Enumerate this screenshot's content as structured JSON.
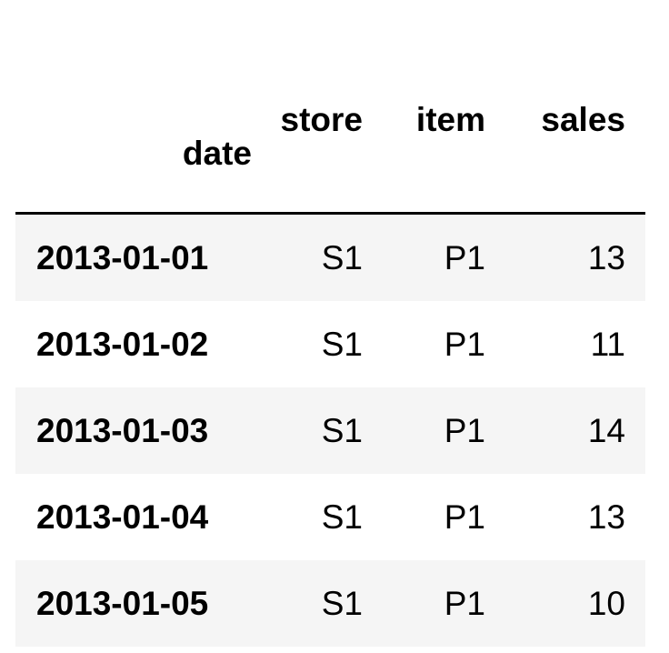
{
  "table": {
    "columns": [
      "store",
      "item",
      "sales"
    ],
    "index_name": "date",
    "rows": [
      {
        "date": "2013-01-01",
        "store": "S1",
        "item": "P1",
        "sales": "13"
      },
      {
        "date": "2013-01-02",
        "store": "S1",
        "item": "P1",
        "sales": "11"
      },
      {
        "date": "2013-01-03",
        "store": "S1",
        "item": "P1",
        "sales": "14"
      },
      {
        "date": "2013-01-04",
        "store": "S1",
        "item": "P1",
        "sales": "13"
      },
      {
        "date": "2013-01-05",
        "store": "S1",
        "item": "P1",
        "sales": "10"
      }
    ]
  }
}
